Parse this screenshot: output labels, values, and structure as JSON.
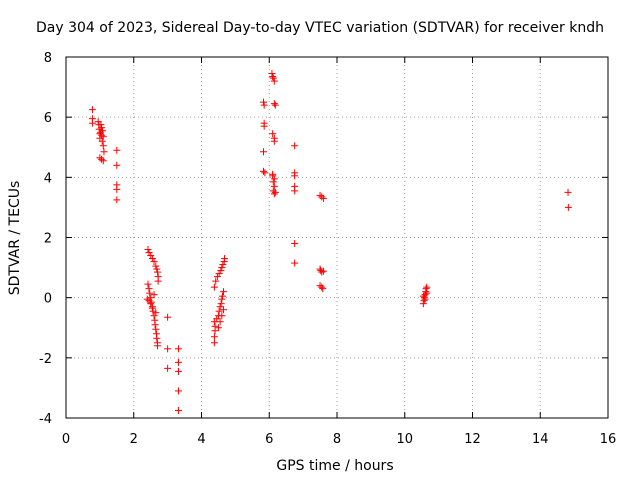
{
  "chart_data": {
    "type": "scatter",
    "title": "Day 304 of 2023, Sidereal Day-to-day VTEC variation (SDTVAR) for receiver kndh",
    "xlabel": "GPS time / hours",
    "ylabel": "SDTVAR / TECUs",
    "xlim": [
      0,
      16
    ],
    "ylim": [
      -4,
      8
    ],
    "xticks": [
      "0",
      "2",
      "4",
      "6",
      "8",
      "10",
      "12",
      "14",
      "16"
    ],
    "yticks": [
      "-4",
      "-2",
      "0",
      "2",
      "4",
      "6",
      "8"
    ],
    "grid": true,
    "marker": "+",
    "color": "#ff0000",
    "series": [
      {
        "points": [
          [
            0.78,
            6.25
          ],
          [
            0.78,
            5.95
          ],
          [
            0.78,
            5.8
          ],
          [
            0.95,
            5.85
          ],
          [
            0.97,
            5.75
          ],
          [
            0.98,
            5.6
          ],
          [
            1.0,
            5.45
          ],
          [
            1.0,
            5.3
          ],
          [
            1.02,
            5.5
          ],
          [
            1.03,
            5.75
          ],
          [
            1.05,
            5.65
          ],
          [
            1.05,
            5.4
          ],
          [
            1.07,
            5.2
          ],
          [
            1.08,
            5.55
          ],
          [
            1.1,
            5.35
          ],
          [
            1.1,
            5.05
          ],
          [
            1.12,
            4.85
          ],
          [
            1.0,
            4.65
          ],
          [
            1.05,
            4.6
          ],
          [
            1.1,
            4.55
          ],
          [
            1.5,
            4.9
          ],
          [
            1.5,
            4.4
          ],
          [
            1.5,
            3.75
          ],
          [
            1.5,
            3.6
          ],
          [
            1.5,
            3.25
          ],
          [
            2.42,
            1.6
          ],
          [
            2.45,
            1.5
          ],
          [
            2.5,
            1.4
          ],
          [
            2.55,
            1.3
          ],
          [
            2.6,
            1.2
          ],
          [
            2.65,
            1.05
          ],
          [
            2.68,
            0.95
          ],
          [
            2.7,
            0.85
          ],
          [
            2.72,
            0.7
          ],
          [
            2.72,
            0.55
          ],
          [
            2.42,
            0.45
          ],
          [
            2.45,
            0.3
          ],
          [
            2.47,
            0.15
          ],
          [
            2.5,
            0.0
          ],
          [
            2.52,
            -0.15
          ],
          [
            2.55,
            -0.3
          ],
          [
            2.57,
            -0.45
          ],
          [
            2.6,
            -0.6
          ],
          [
            2.62,
            -0.75
          ],
          [
            2.63,
            -0.9
          ],
          [
            2.65,
            -1.05
          ],
          [
            2.67,
            -1.2
          ],
          [
            2.68,
            -1.35
          ],
          [
            2.7,
            -1.5
          ],
          [
            2.7,
            -1.6
          ],
          [
            2.4,
            -0.05
          ],
          [
            2.45,
            -0.1
          ],
          [
            2.5,
            -0.2
          ],
          [
            2.55,
            -0.35
          ],
          [
            2.6,
            0.1
          ],
          [
            2.65,
            -0.5
          ],
          [
            3.0,
            -0.65
          ],
          [
            3.0,
            -1.7
          ],
          [
            3.0,
            -2.35
          ],
          [
            3.32,
            -1.7
          ],
          [
            3.32,
            -2.15
          ],
          [
            3.32,
            -2.45
          ],
          [
            3.32,
            -3.1
          ],
          [
            3.32,
            -3.75
          ],
          [
            4.38,
            0.35
          ],
          [
            4.42,
            0.55
          ],
          [
            4.47,
            0.7
          ],
          [
            4.52,
            0.8
          ],
          [
            4.57,
            0.9
          ],
          [
            4.6,
            1.0
          ],
          [
            4.63,
            1.1
          ],
          [
            4.67,
            1.2
          ],
          [
            4.68,
            1.3
          ],
          [
            4.38,
            -0.8
          ],
          [
            4.4,
            -0.95
          ],
          [
            4.4,
            -1.1
          ],
          [
            4.38,
            -1.3
          ],
          [
            4.38,
            -1.5
          ],
          [
            4.45,
            -0.7
          ],
          [
            4.5,
            -0.6
          ],
          [
            4.52,
            -0.45
          ],
          [
            4.55,
            -0.3
          ],
          [
            4.58,
            -0.2
          ],
          [
            4.6,
            -0.05
          ],
          [
            4.62,
            0.05
          ],
          [
            4.65,
            0.2
          ],
          [
            4.5,
            -1.0
          ],
          [
            4.55,
            -0.8
          ],
          [
            4.6,
            -0.6
          ],
          [
            4.65,
            -0.4
          ],
          [
            5.83,
            6.5
          ],
          [
            5.85,
            6.4
          ],
          [
            5.85,
            5.8
          ],
          [
            5.85,
            5.7
          ],
          [
            5.83,
            4.85
          ],
          [
            5.83,
            4.2
          ],
          [
            5.87,
            4.15
          ],
          [
            6.08,
            7.45
          ],
          [
            6.1,
            7.35
          ],
          [
            6.12,
            7.3
          ],
          [
            6.15,
            7.2
          ],
          [
            6.15,
            6.45
          ],
          [
            6.18,
            6.4
          ],
          [
            6.1,
            5.45
          ],
          [
            6.15,
            5.3
          ],
          [
            6.15,
            5.2
          ],
          [
            6.1,
            4.05
          ],
          [
            6.15,
            3.95
          ],
          [
            6.12,
            3.85
          ],
          [
            6.15,
            3.7
          ],
          [
            6.12,
            3.55
          ],
          [
            6.15,
            3.45
          ],
          [
            6.18,
            3.5
          ],
          [
            6.1,
            4.1
          ],
          [
            6.75,
            5.05
          ],
          [
            6.75,
            4.15
          ],
          [
            6.75,
            4.05
          ],
          [
            6.75,
            3.7
          ],
          [
            6.75,
            3.55
          ],
          [
            6.75,
            1.8
          ],
          [
            6.75,
            1.15
          ],
          [
            7.5,
            3.4
          ],
          [
            7.55,
            3.35
          ],
          [
            7.6,
            3.3
          ],
          [
            7.5,
            0.95
          ],
          [
            7.52,
            0.9
          ],
          [
            7.55,
            0.85
          ],
          [
            7.6,
            0.88
          ],
          [
            7.5,
            0.4
          ],
          [
            7.55,
            0.35
          ],
          [
            7.58,
            0.3
          ],
          [
            10.55,
            -0.2
          ],
          [
            10.57,
            -0.1
          ],
          [
            10.58,
            0.0
          ],
          [
            10.6,
            0.1
          ],
          [
            10.62,
            0.2
          ],
          [
            10.63,
            0.3
          ],
          [
            10.65,
            0.35
          ],
          [
            10.55,
            0.05
          ],
          [
            10.6,
            -0.05
          ],
          [
            10.65,
            0.15
          ],
          [
            14.82,
            3.5
          ],
          [
            14.83,
            3.0
          ]
        ]
      }
    ]
  }
}
